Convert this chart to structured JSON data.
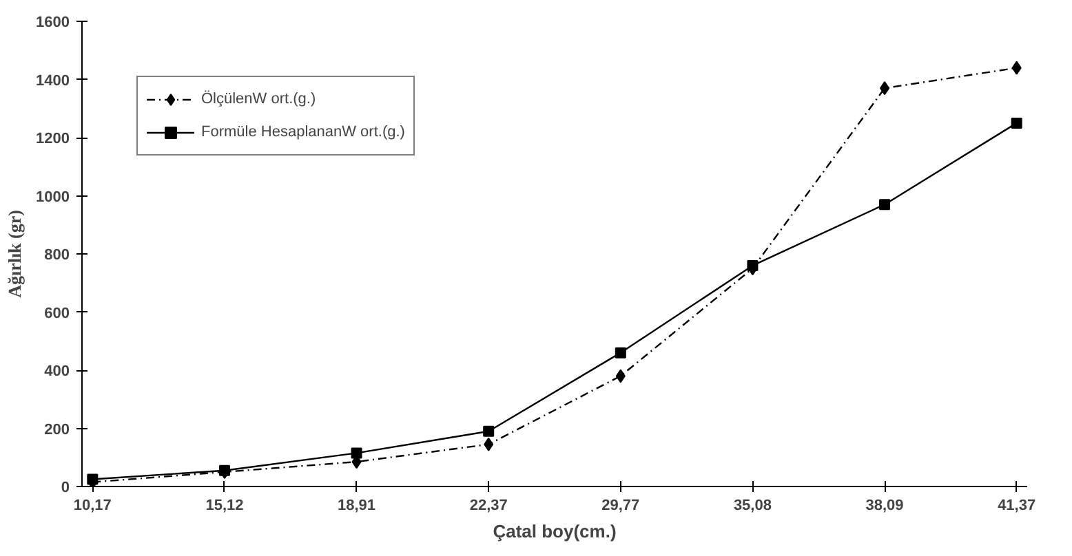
{
  "chart_data": {
    "type": "line",
    "xlabel": "Çatal boy(cm.)",
    "ylabel": "Ağırlık (gr)",
    "categories": [
      "10,17",
      "15,12",
      "18,91",
      "22,37",
      "29,77",
      "35,08",
      "38,09",
      "41,37"
    ],
    "series": [
      {
        "name": "ÖlçülenW ort.(g.)",
        "color": "#000000",
        "marker": "diamond",
        "line_style": "dashed",
        "values": [
          15,
          50,
          85,
          145,
          380,
          750,
          1370,
          1440
        ]
      },
      {
        "name": "Formüle HesaplananW ort.(g.)",
        "color": "#000000",
        "marker": "square",
        "line_style": "solid",
        "values": [
          25,
          55,
          115,
          190,
          460,
          760,
          970,
          1250
        ]
      }
    ],
    "ylim": [
      0,
      1600
    ],
    "yticks": [
      0,
      200,
      400,
      600,
      800,
      1000,
      1200,
      1400,
      1600
    ],
    "grid": false,
    "legend": "top left"
  }
}
